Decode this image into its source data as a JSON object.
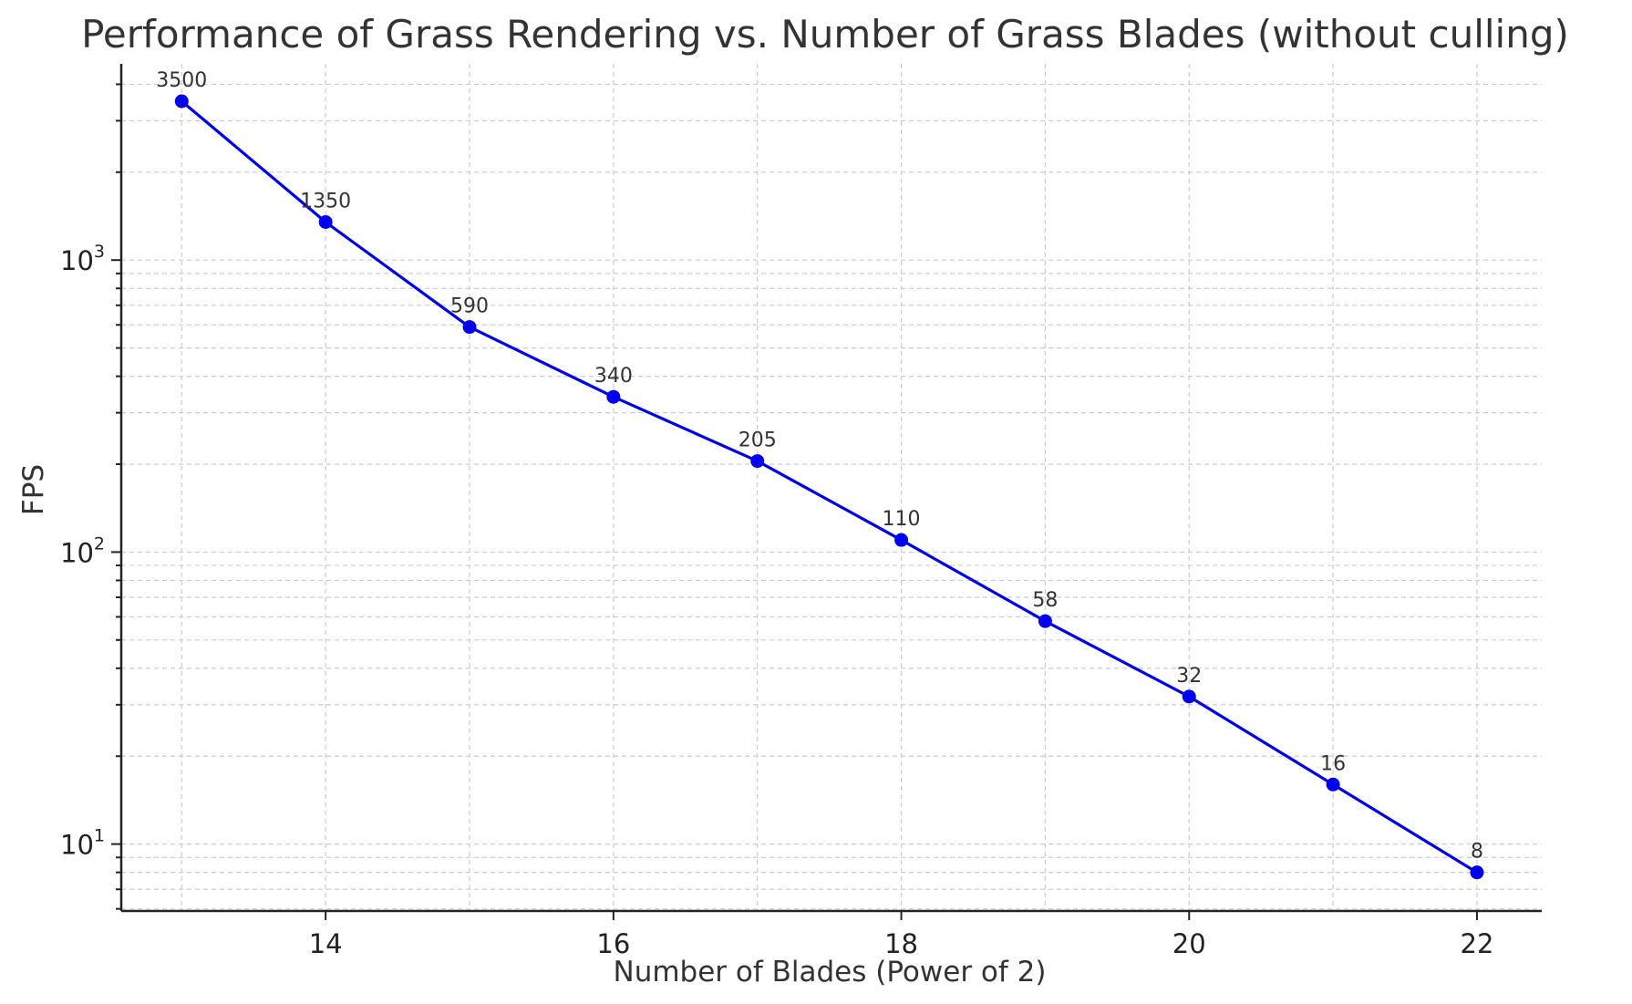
{
  "chart_data": {
    "type": "line",
    "title": "Performance of Grass Rendering vs. Number of Grass Blades (without culling)",
    "xlabel": "Number of Blades (Power of 2)",
    "ylabel": "FPS",
    "yscale": "log",
    "x": [
      13,
      14,
      15,
      16,
      17,
      18,
      19,
      20,
      21,
      22
    ],
    "series": [
      {
        "values": [
          3500,
          1350,
          590,
          340,
          205,
          110,
          58,
          32,
          16,
          8
        ]
      }
    ],
    "data_labels": [
      "3500",
      "1350",
      "590",
      "340",
      "205",
      "110",
      "58",
      "32",
      "16",
      "8"
    ],
    "xlim": [
      12.58,
      22.45
    ],
    "ylim": [
      5.9,
      4700
    ],
    "x_ticks": [
      14,
      16,
      18,
      20,
      22
    ],
    "x_tick_labels": [
      "14",
      "16",
      "18",
      "20",
      "22"
    ],
    "y_ticks": [
      10,
      100,
      1000
    ],
    "y_tick_labels": [
      {
        "base": "10",
        "exp": "1"
      },
      {
        "base": "10",
        "exp": "2"
      },
      {
        "base": "10",
        "exp": "3"
      }
    ],
    "grid": true,
    "colors": {
      "line": "#0000ee",
      "marker": "#0000ee"
    }
  }
}
